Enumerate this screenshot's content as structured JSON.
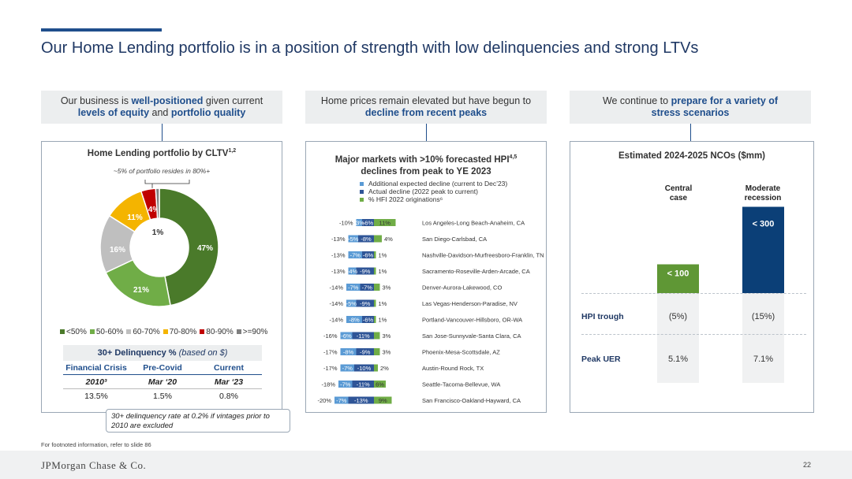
{
  "title": "Our Home Lending portfolio is in a position of strength with low delinquencies and strong LTVs",
  "headers": [
    {
      "pre": "Our business is ",
      "b1": "well-positioned",
      "mid1": " given current ",
      "b2": "levels of equity",
      "mid2": " and ",
      "b3": "portfolio quality"
    },
    {
      "line1": "Home prices remain elevated but have begun to",
      "b1": "decline from recent peaks"
    },
    {
      "pre": "We continue to ",
      "b1": "prepare for a variety of",
      "b2": "stress scenarios"
    }
  ],
  "panel1": {
    "title": "Home Lending portfolio by CLTV",
    "title_sup": "1,2",
    "note": "~5% of portfolio resides in 80%+",
    "delinquency_title": "30+ Delinquency % ",
    "delinquency_sub": "(based on $)",
    "delinquency_cols": [
      "Financial Crisis",
      "Pre-Covid",
      "Current"
    ],
    "delinquency_dates": [
      "2010³",
      "Mar ‘20",
      "Mar ‘23"
    ],
    "delinquency_vals": [
      "13.5%",
      "1.5%",
      "0.8%"
    ],
    "callout": "30+ delinquency rate at 0.2% if vintages prior to 2010 are excluded"
  },
  "panel2": {
    "title_l1": "Major markets with >10% forecasted HPI",
    "title_sup": "4,5",
    "title_l2": "declines from peak to YE 2023",
    "legend": [
      "Additional expected decline (current to Dec’23)",
      "Actual decline (2022 peak to current)",
      "% HFI 2022 originations⁶"
    ]
  },
  "panel3": {
    "title": "Estimated 2024-2025 NCOs ($mm)",
    "col1": [
      "Central",
      "case"
    ],
    "col2": [
      "Moderate",
      "recession"
    ],
    "bar1_label": "< 100",
    "bar2_label": "< 300",
    "row1_label": "HPI trough",
    "row1_vals": [
      "(5%)",
      "(15%)"
    ],
    "row2_label": "Peak UER",
    "row2_vals": [
      "5.1%",
      "7.1%"
    ]
  },
  "ncos": {
    "central_case_max": 100,
    "moderate_recession_max": 300
  },
  "chart_data": [
    {
      "type": "pie",
      "title": "Home Lending portfolio by CLTV",
      "categories": [
        "<50%",
        "50-60%",
        "60-70%",
        "70-80%",
        "80-90%",
        ">=90%"
      ],
      "values": [
        47,
        21,
        16,
        11,
        4,
        1
      ],
      "labels": [
        "47%",
        "21%",
        "16%",
        "11%",
        "4%",
        "1%"
      ],
      "colors": [
        "#4a7a2a",
        "#70ad47",
        "#bfbfbf",
        "#f4b400",
        "#c00000",
        "#7f7f7f"
      ],
      "legend": "bottom"
    },
    {
      "type": "bar",
      "title": "Major markets with >10% forecasted HPI declines from peak to YE 2023",
      "categories": [
        "Los Angeles-Long Beach-Anaheim, CA",
        "San Diego-Carlsbad, CA",
        "Nashville-Davidson-Murfreesboro-Franklin, TN",
        "Sacramento-Roseville-Arden-Arcade, CA",
        "Denver-Aurora-Lakewood, CO",
        "Las Vegas-Henderson-Paradise, NV",
        "Portland-Vancouver-Hillsboro, OR-WA",
        "San Jose-Sunnyvale-Santa Clara, CA",
        "Phoenix-Mesa-Scottsdale, AZ",
        "Austin-Round Rock, TX",
        "Seattle-Tacoma-Bellevue, WA",
        "San Francisco-Oakland-Hayward, CA"
      ],
      "totals": [
        "-10%",
        "-13%",
        "-13%",
        "-13%",
        "-14%",
        "-14%",
        "-14%",
        "-16%",
        "-17%",
        "-17%",
        "-18%",
        "-20%"
      ],
      "series": [
        {
          "name": "Additional expected decline (current to Dec’23)",
          "values": [
            -3,
            -5,
            -7,
            -4,
            -7,
            -5,
            -8,
            -6,
            -8,
            -7,
            -7,
            -7
          ],
          "color": "#5b9bd5"
        },
        {
          "name": "Actual decline (2022 peak to current)",
          "values": [
            -6,
            -8,
            -6,
            -9,
            -7,
            -9,
            -6,
            -11,
            -9,
            -10,
            -11,
            -13
          ],
          "color": "#2f5597"
        },
        {
          "name": "% HFI 2022 originations⁶",
          "values": [
            11,
            4,
            1,
            1,
            3,
            1,
            1,
            3,
            3,
            2,
            6,
            9
          ],
          "color": "#70ad47"
        }
      ]
    },
    {
      "type": "bar",
      "title": "Estimated 2024-2025 NCOs ($mm)",
      "categories": [
        "Central case",
        "Moderate recession"
      ],
      "values": [
        "< 100",
        "< 300"
      ],
      "colors": [
        "#5f9735",
        "#0b3f77"
      ]
    }
  ]
}
